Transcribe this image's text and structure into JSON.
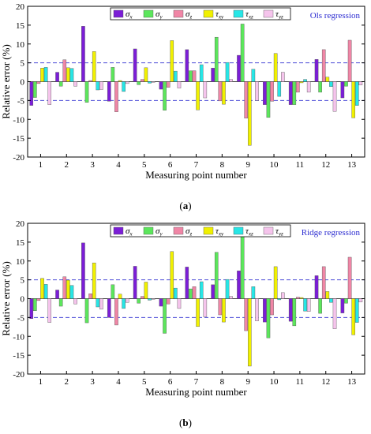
{
  "chart_data": [
    {
      "type": "bar",
      "panel_label_open": "(",
      "panel_label_letter": "a",
      "panel_label_close": ")",
      "annotation": "Ols regression",
      "xlabel": "Measuring point number",
      "ylabel": "Relative error (%)",
      "ylim": [
        -20,
        20
      ],
      "yticks": [
        -20,
        -15,
        -10,
        -5,
        0,
        5,
        10,
        15,
        20
      ],
      "reference_lines": [
        5,
        -5
      ],
      "categories": [
        "1",
        "2",
        "3",
        "4",
        "5",
        "6",
        "7",
        "8",
        "9",
        "10",
        "11",
        "12",
        "13"
      ],
      "series": [
        {
          "name": "σx",
          "symbol": "σ",
          "sub": "x",
          "color": "#7b1ed6",
          "values": [
            -6.3,
            2.5,
            14.7,
            -5.2,
            8.7,
            -2,
            8.5,
            3.6,
            7.0,
            -6.1,
            -6.1,
            5.9,
            -4.3
          ]
        },
        {
          "name": "σy",
          "symbol": "σ",
          "sub": "y",
          "color": "#5ce65c",
          "values": [
            -4.2,
            -1.2,
            -5.5,
            3.8,
            -0.8,
            -7.6,
            2.9,
            11.8,
            15.3,
            -9.5,
            -6.1,
            -2.8,
            -1.2
          ]
        },
        {
          "name": "σz",
          "symbol": "σ",
          "sub": "z",
          "color": "#f086a6",
          "values": [
            -0.5,
            5.8,
            0.3,
            -8.0,
            0.6,
            -1.5,
            2.9,
            -5.1,
            -9.7,
            -5.2,
            -2.8,
            8.5,
            11.0
          ]
        },
        {
          "name": "τxy",
          "symbol": "τ",
          "sub": "xy",
          "color": "#f0f000",
          "values": [
            3.6,
            3.7,
            8.0,
            0.3,
            3.7,
            10.9,
            -7.5,
            -6.0,
            -16.9,
            7.5,
            -0.3,
            1.2,
            -9.6
          ]
        },
        {
          "name": "τxz",
          "symbol": "τ",
          "sub": "xz",
          "color": "#27e6e6",
          "values": [
            3.8,
            3.5,
            -2.2,
            -2.6,
            -0.4,
            2.8,
            4.5,
            5.1,
            3.3,
            -3.9,
            0.6,
            -1.3,
            -6.3
          ]
        },
        {
          "name": "τyz",
          "symbol": "τ",
          "sub": "yz",
          "color": "#f5c4ec",
          "values": [
            -6.1,
            -1.2,
            -2.1,
            -0.5,
            -0.2,
            -1.7,
            -4.3,
            0.6,
            -5.0,
            2.5,
            -2.8,
            -7.9,
            -0.9
          ]
        }
      ]
    },
    {
      "type": "bar",
      "panel_label_open": "(",
      "panel_label_letter": "b",
      "panel_label_close": ")",
      "annotation": "Ridge regression",
      "xlabel": "Measuring point number",
      "ylabel": "Relative error (%)",
      "ylim": [
        -20,
        20
      ],
      "yticks": [
        -20,
        -15,
        -10,
        -5,
        0,
        5,
        10,
        15,
        20
      ],
      "reference_lines": [
        5,
        -5
      ],
      "categories": [
        "1",
        "2",
        "3",
        "4",
        "5",
        "6",
        "7",
        "8",
        "9",
        "10",
        "11",
        "12",
        "13"
      ],
      "series": [
        {
          "name": "σx",
          "symbol": "σ",
          "sub": "x",
          "color": "#7b1ed6",
          "values": [
            -5.3,
            2.3,
            14.8,
            -5.0,
            8.6,
            -2.0,
            8.4,
            3.7,
            7.4,
            -6.2,
            -6.0,
            6.1,
            -3.8
          ]
        },
        {
          "name": "σy",
          "symbol": "σ",
          "sub": "y",
          "color": "#5ce65c",
          "values": [
            -3.2,
            -2.0,
            -6.4,
            3.7,
            -1.2,
            -9.2,
            2.6,
            12.3,
            16.5,
            -10.4,
            -7.2,
            -3.9,
            -1.2
          ]
        },
        {
          "name": "σz",
          "symbol": "σ",
          "sub": "z",
          "color": "#f086a6",
          "values": [
            -0.5,
            5.8,
            1.3,
            -7.0,
            0.6,
            -1.4,
            3.2,
            -4.3,
            -8.5,
            -4.3,
            0.4,
            8.5,
            11.0
          ]
        },
        {
          "name": "τxy",
          "symbol": "τ",
          "sub": "xy",
          "color": "#f0f000",
          "values": [
            5.4,
            4.9,
            9.5,
            1.2,
            4.4,
            12.5,
            -7.4,
            -6.2,
            -17.9,
            8.5,
            0.3,
            1.9,
            -9.6
          ]
        },
        {
          "name": "τxz",
          "symbol": "τ",
          "sub": "xz",
          "color": "#27e6e6",
          "values": [
            3.8,
            3.5,
            -2.2,
            -2.6,
            -0.4,
            2.8,
            4.5,
            5.1,
            3.2,
            -0.3,
            -3.3,
            -1.0,
            -6.3
          ]
        },
        {
          "name": "τyz",
          "symbol": "τ",
          "sub": "yz",
          "color": "#f5c4ec",
          "values": [
            -6.3,
            -1.4,
            -2.8,
            -1.0,
            -0.2,
            -2.6,
            -4.8,
            0.6,
            -5.9,
            1.6,
            -3.4,
            -8.0,
            -0.9
          ]
        }
      ]
    }
  ]
}
